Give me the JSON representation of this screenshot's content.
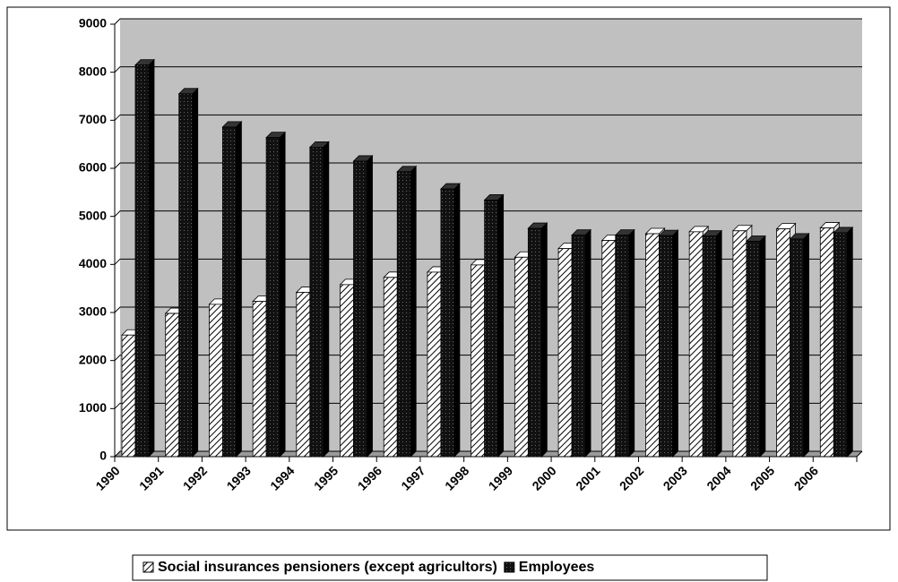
{
  "chart_data": {
    "type": "bar",
    "categories": [
      "1990",
      "1991",
      "1992",
      "1993",
      "1994",
      "1995",
      "1996",
      "1997",
      "1998",
      "1999",
      "2000",
      "2001",
      "2002",
      "2003",
      "2004",
      "2005",
      "2006"
    ],
    "series": [
      {
        "name": "Social insurances pensioners (except agricultors)",
        "color": "#ffffff",
        "pattern": "hatch",
        "values": [
          2530,
          2980,
          3170,
          3230,
          3420,
          3580,
          3730,
          3840,
          3990,
          4150,
          4330,
          4500,
          4640,
          4680,
          4700,
          4740,
          4760
        ]
      },
      {
        "name": "Employees",
        "color": "#000000",
        "values": [
          8150,
          7550,
          6860,
          6640,
          6440,
          6150,
          5930,
          5570,
          5340,
          4750,
          4610,
          4610,
          4600,
          4590,
          4480,
          4530,
          4660
        ]
      }
    ],
    "ylim": [
      0,
      9000
    ],
    "yticks": [
      0,
      1000,
      2000,
      3000,
      4000,
      5000,
      6000,
      7000,
      8000,
      9000
    ],
    "grid": true,
    "legend": "bottom"
  }
}
